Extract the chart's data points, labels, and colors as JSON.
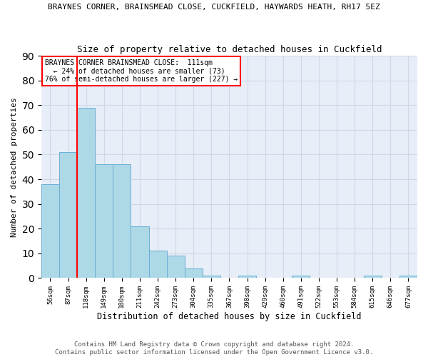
{
  "title": "BRAYNES CORNER, BRAINSMEAD CLOSE, CUCKFIELD, HAYWARDS HEATH, RH17 5EZ",
  "subtitle": "Size of property relative to detached houses in Cuckfield",
  "xlabel": "Distribution of detached houses by size in Cuckfield",
  "ylabel": "Number of detached properties",
  "bar_values": [
    38,
    51,
    69,
    46,
    46,
    21,
    11,
    9,
    4,
    1,
    0,
    1,
    0,
    0,
    1,
    0,
    0,
    0,
    1,
    0,
    1
  ],
  "bin_labels": [
    "56sqm",
    "87sqm",
    "118sqm",
    "149sqm",
    "180sqm",
    "211sqm",
    "242sqm",
    "273sqm",
    "304sqm",
    "335sqm",
    "367sqm",
    "398sqm",
    "429sqm",
    "460sqm",
    "491sqm",
    "522sqm",
    "553sqm",
    "584sqm",
    "615sqm",
    "646sqm",
    "677sqm"
  ],
  "bar_color": "#add8e6",
  "bar_edge_color": "#6baed6",
  "grid_color": "#d0d8e8",
  "bg_color": "#e8eef8",
  "vline_color": "red",
  "vline_pos": 1.5,
  "annotation_text": "BRAYNES CORNER BRAINSMEAD CLOSE:  111sqm\n  ← 24% of detached houses are smaller (73)\n76% of semi-detached houses are larger (227) →",
  "annotation_box_color": "white",
  "annotation_box_edge": "red",
  "ylim": [
    0,
    90
  ],
  "yticks": [
    0,
    10,
    20,
    30,
    40,
    50,
    60,
    70,
    80,
    90
  ],
  "footer_line1": "Contains HM Land Registry data © Crown copyright and database right 2024.",
  "footer_line2": "Contains public sector information licensed under the Open Government Licence v3.0.",
  "title_fontsize": 8,
  "subtitle_fontsize": 9,
  "ylabel_fontsize": 8,
  "xlabel_fontsize": 8.5,
  "tick_fontsize": 6.5,
  "annot_fontsize": 7
}
